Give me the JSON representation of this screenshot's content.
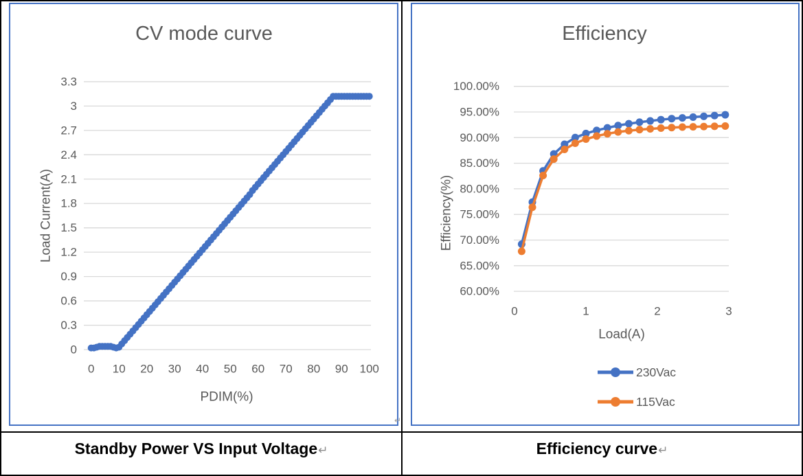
{
  "panels": [
    {
      "caption": "Standby Power VS Input Voltage",
      "return_mark": "↵",
      "box_return_mark": "↵"
    },
    {
      "caption": "Efficiency curve",
      "return_mark": "↵"
    }
  ],
  "colors": {
    "series_blue": "#4472C4",
    "series_orange": "#ED7D31",
    "chart_text": "#595959",
    "gridline": "#D9D9D9",
    "chart_frame": "#4472C4",
    "table_border": "#000000"
  },
  "chart_data": [
    {
      "type": "line",
      "title": "CV mode curve",
      "xlabel": "PDIM(%)",
      "ylabel": "Load Current(A)",
      "xlim": [
        0,
        100
      ],
      "ylim": [
        0,
        3.3
      ],
      "grid": true,
      "legend_position": "none",
      "xticks": [
        0,
        10,
        20,
        30,
        40,
        50,
        60,
        70,
        80,
        90,
        100
      ],
      "xtick_labels": [
        "0",
        "10",
        "20",
        "30",
        "40",
        "50",
        "60",
        "70",
        "80",
        "90",
        "100"
      ],
      "yticks": [
        3.3,
        3,
        2.7,
        2.4,
        2.1,
        1.8,
        1.5,
        1.2,
        0.9,
        0.6,
        0.3,
        0
      ],
      "ytick_labels": [
        "3.3",
        "3",
        "2.7",
        "2.4",
        "2.1",
        "1.8",
        "1.5",
        "1.2",
        "0.9",
        "0.6",
        "0.3",
        "0"
      ],
      "series": [
        {
          "name": "Load Current",
          "color": "#4472C4",
          "x": [
            0,
            1,
            2,
            3,
            4,
            5,
            6,
            7,
            8,
            9,
            10,
            11,
            12,
            13,
            14,
            15,
            16,
            17,
            18,
            19,
            20,
            21,
            22,
            23,
            24,
            25,
            26,
            27,
            28,
            29,
            30,
            31,
            32,
            33,
            34,
            35,
            36,
            37,
            38,
            39,
            40,
            41,
            42,
            43,
            44,
            45,
            46,
            47,
            48,
            49,
            50,
            51,
            52,
            53,
            54,
            55,
            56,
            57,
            58,
            59,
            60,
            61,
            62,
            63,
            64,
            65,
            66,
            67,
            68,
            69,
            70,
            71,
            72,
            73,
            74,
            75,
            76,
            77,
            78,
            79,
            80,
            81,
            82,
            83,
            84,
            85,
            86,
            87,
            88,
            89,
            90,
            91,
            92,
            93,
            94,
            95,
            96,
            97,
            98,
            99,
            100
          ],
          "y": [
            0.02,
            0.02,
            0.03,
            0.04,
            0.04,
            0.04,
            0.04,
            0.04,
            0.03,
            0.02,
            0.03,
            0.07,
            0.11,
            0.15,
            0.19,
            0.23,
            0.27,
            0.31,
            0.35,
            0.39,
            0.43,
            0.47,
            0.51,
            0.55,
            0.59,
            0.63,
            0.67,
            0.71,
            0.75,
            0.79,
            0.83,
            0.87,
            0.91,
            0.95,
            0.99,
            1.03,
            1.07,
            1.11,
            1.15,
            1.19,
            1.23,
            1.27,
            1.31,
            1.35,
            1.39,
            1.43,
            1.47,
            1.51,
            1.55,
            1.59,
            1.63,
            1.67,
            1.71,
            1.75,
            1.79,
            1.83,
            1.87,
            1.91,
            1.96,
            2.0,
            2.04,
            2.08,
            2.12,
            2.16,
            2.2,
            2.24,
            2.28,
            2.32,
            2.36,
            2.4,
            2.44,
            2.48,
            2.52,
            2.56,
            2.6,
            2.64,
            2.68,
            2.72,
            2.76,
            2.8,
            2.84,
            2.88,
            2.92,
            2.96,
            3.0,
            3.04,
            3.08,
            3.12,
            3.12,
            3.12,
            3.12,
            3.12,
            3.12,
            3.12,
            3.12,
            3.12,
            3.12,
            3.12,
            3.12,
            3.12,
            3.12
          ]
        }
      ]
    },
    {
      "type": "line",
      "title": "Efficiency",
      "xlabel": "Load(A)",
      "ylabel": "Efficiency(%)",
      "xlim": [
        0,
        3
      ],
      "ylim": [
        60,
        100
      ],
      "grid": true,
      "legend_position": "bottom",
      "xticks": [
        0,
        1,
        2,
        3
      ],
      "xtick_labels": [
        "0",
        "1",
        "2",
        "3"
      ],
      "yticks": [
        100,
        95,
        90,
        85,
        80,
        75,
        70,
        65,
        60
      ],
      "ytick_labels": [
        "100.00%",
        "95.00%",
        "90.00%",
        "85.00%",
        "80.00%",
        "75.00%",
        "70.00%",
        "65.00%",
        "60.00%"
      ],
      "series": [
        {
          "name": "230Vac",
          "color": "#4472C4",
          "x": [
            0.1,
            0.25,
            0.4,
            0.55,
            0.7,
            0.85,
            1.0,
            1.15,
            1.3,
            1.45,
            1.6,
            1.75,
            1.9,
            2.05,
            2.2,
            2.35,
            2.5,
            2.65,
            2.8,
            2.95
          ],
          "y": [
            69.2,
            77.4,
            83.5,
            86.8,
            88.7,
            90.0,
            90.8,
            91.4,
            91.9,
            92.35,
            92.7,
            93.0,
            93.25,
            93.5,
            93.7,
            93.85,
            94.0,
            94.15,
            94.3,
            94.45
          ]
        },
        {
          "name": "115Vac",
          "color": "#ED7D31",
          "x": [
            0.1,
            0.25,
            0.4,
            0.55,
            0.7,
            0.85,
            1.0,
            1.15,
            1.3,
            1.45,
            1.6,
            1.75,
            1.9,
            2.05,
            2.2,
            2.35,
            2.5,
            2.65,
            2.8,
            2.95
          ],
          "y": [
            67.8,
            76.4,
            82.6,
            85.8,
            87.7,
            88.9,
            89.7,
            90.3,
            90.75,
            91.1,
            91.35,
            91.55,
            91.7,
            91.85,
            91.95,
            92.05,
            92.1,
            92.15,
            92.2,
            92.25
          ]
        }
      ]
    }
  ]
}
